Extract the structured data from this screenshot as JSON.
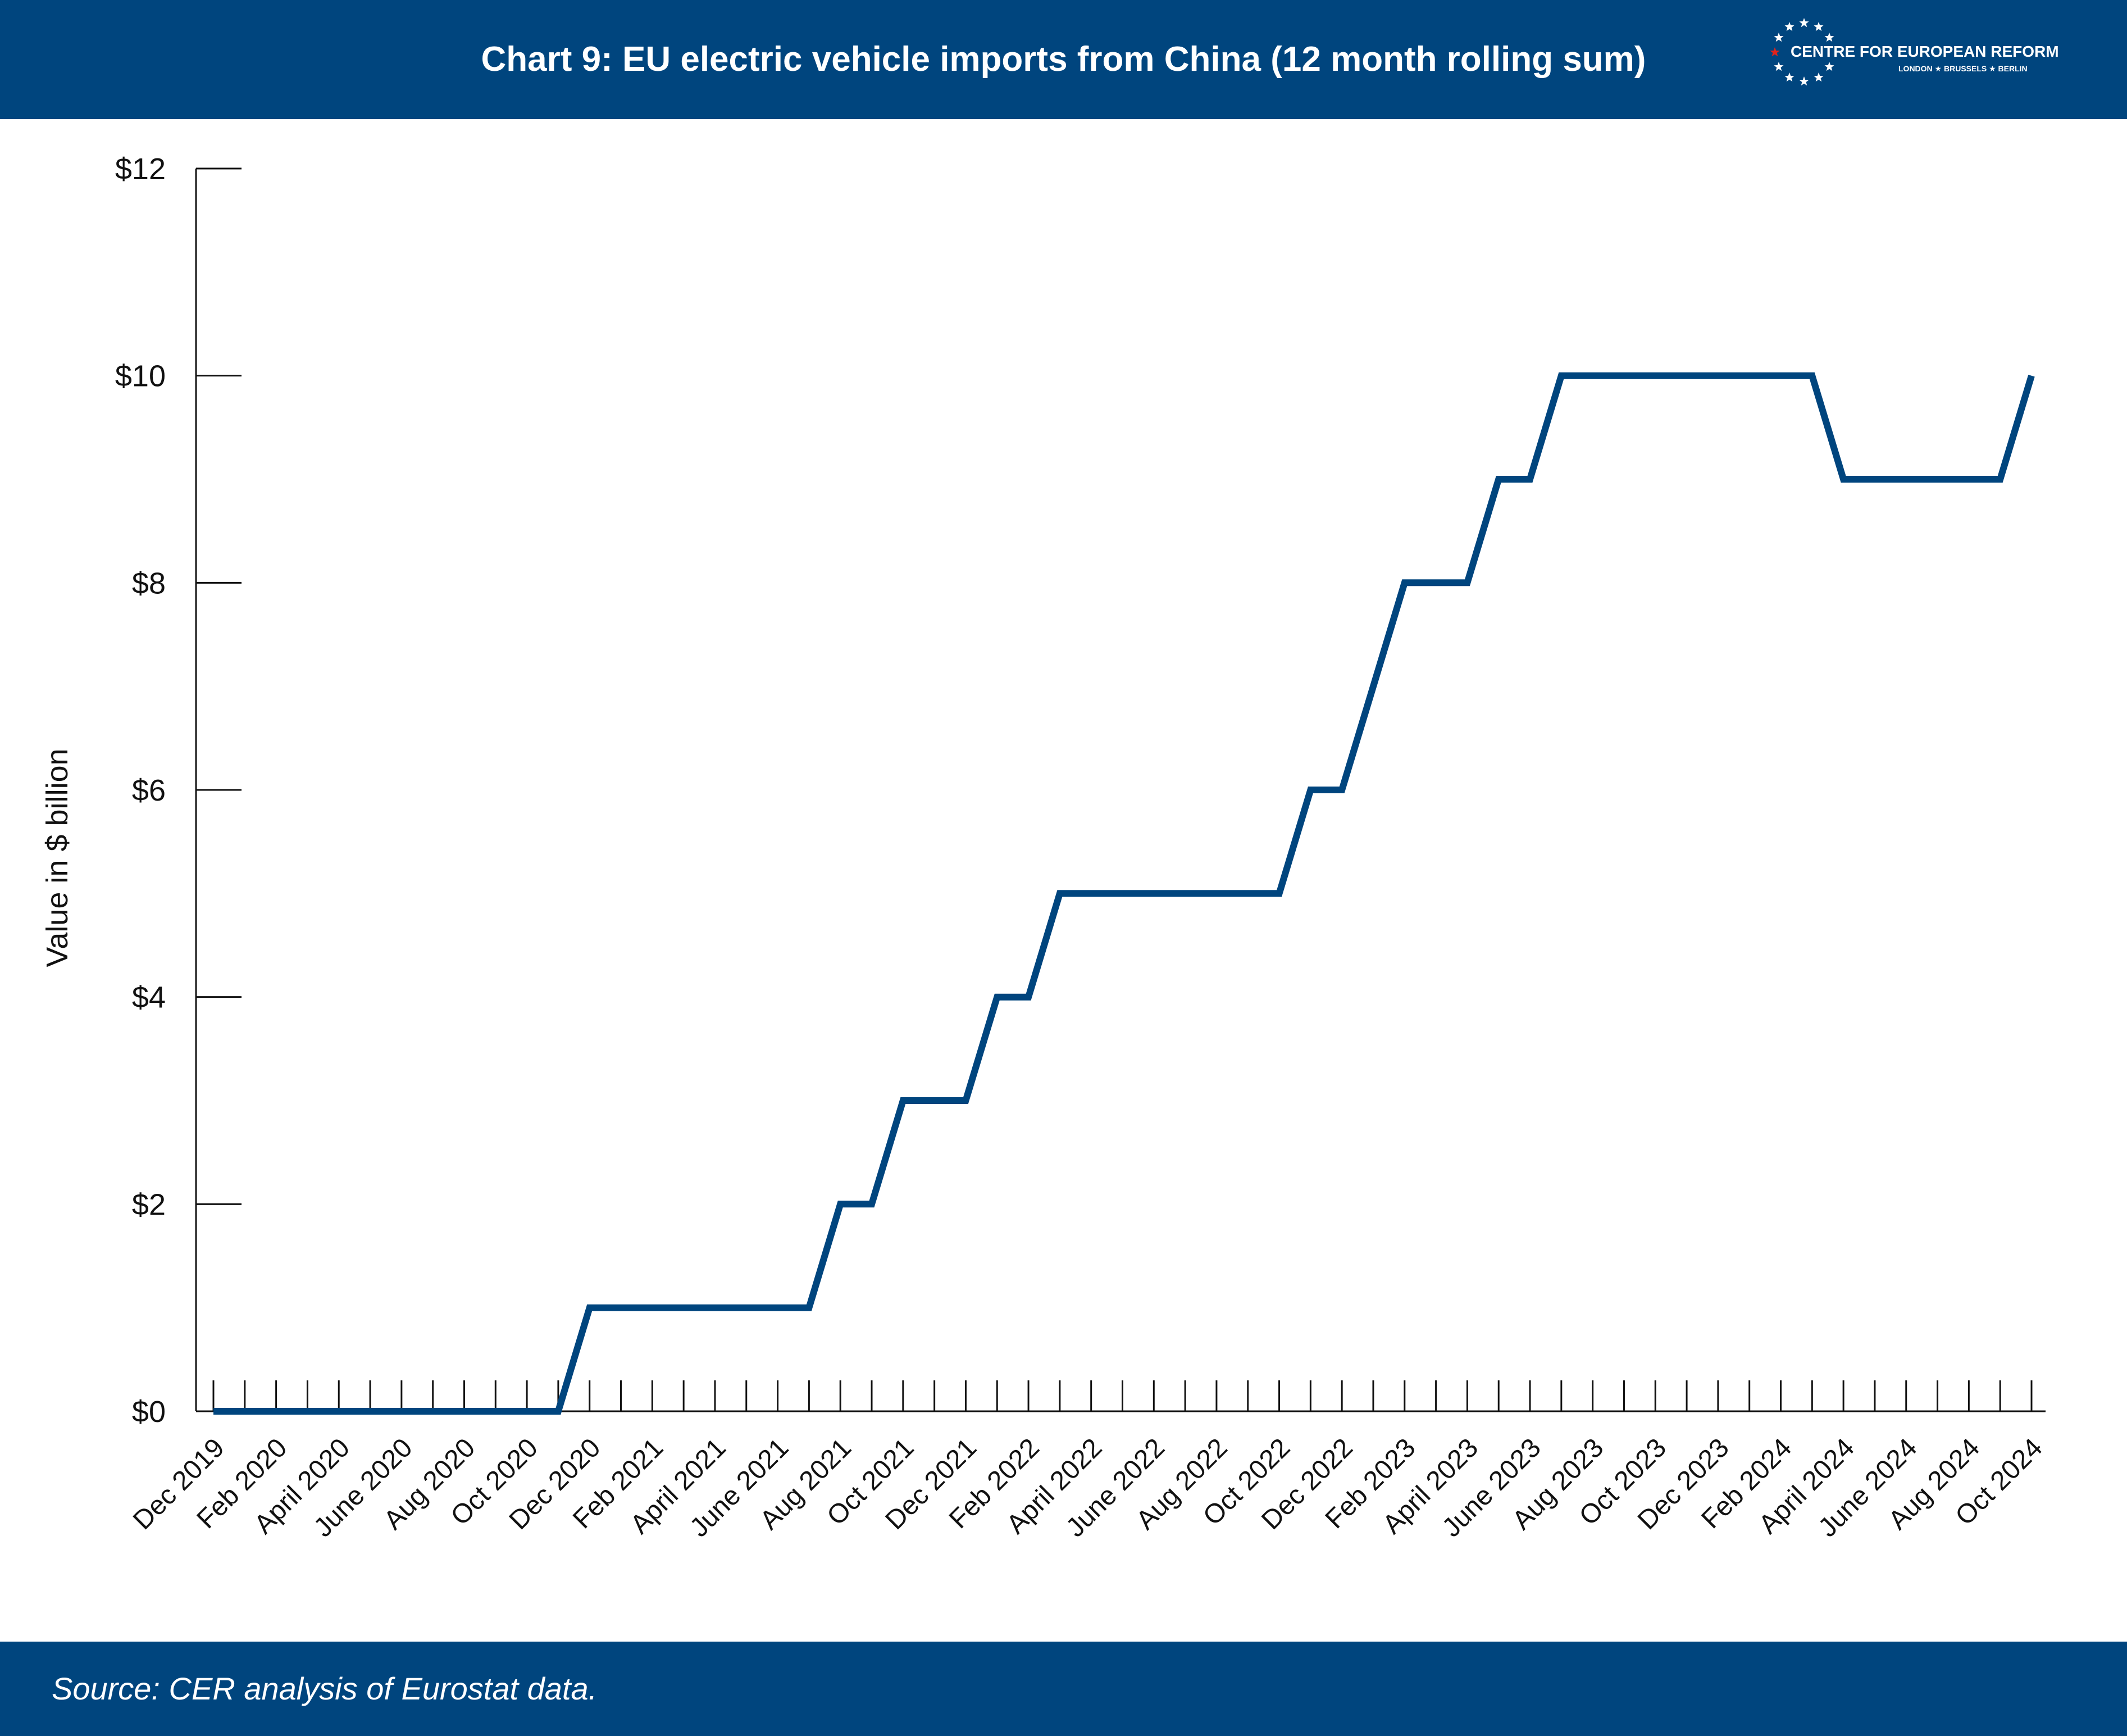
{
  "header": {
    "title": "Chart 9: EU electric vehicle imports from China (12 month rolling sum)"
  },
  "logo": {
    "name": "CENTRE FOR EUROPEAN REFORM",
    "subtitle": "LONDON ★ BRUSSELS ★ BERLIN",
    "icon": "eu-star-ring-icon"
  },
  "footer": {
    "source": "Source: CER analysis of Eurostat data."
  },
  "colors": {
    "brand": "#00457e",
    "series": "#00457e",
    "star_accent": "#e2231a"
  },
  "chart_data": {
    "type": "line",
    "ylabel": "Value in $ billion",
    "xlabel": "",
    "ylim": [
      0,
      12
    ],
    "yticks": [
      {
        "value": 0,
        "label": "$0"
      },
      {
        "value": 2,
        "label": "$2"
      },
      {
        "value": 4,
        "label": "$4"
      },
      {
        "value": 6,
        "label": "$6"
      },
      {
        "value": 8,
        "label": "$8"
      },
      {
        "value": 10,
        "label": "$10"
      },
      {
        "value": 12,
        "label": "$12"
      }
    ],
    "x": [
      "Dec 2019",
      "Jan 2020",
      "Feb 2020",
      "Mar 2020",
      "Apr 2020",
      "May 2020",
      "Jun 2020",
      "Jul 2020",
      "Aug 2020",
      "Sep 2020",
      "Oct 2020",
      "Nov 2020",
      "Dec 2020",
      "Jan 2021",
      "Feb 2021",
      "Mar 2021",
      "Apr 2021",
      "May 2021",
      "Jun 2021",
      "Jul 2021",
      "Aug 2021",
      "Sep 2021",
      "Oct 2021",
      "Nov 2021",
      "Dec 2021",
      "Jan 2022",
      "Feb 2022",
      "Mar 2022",
      "Apr 2022",
      "May 2022",
      "Jun 2022",
      "Jul 2022",
      "Aug 2022",
      "Sep 2022",
      "Oct 2022",
      "Nov 2022",
      "Dec 2022",
      "Jan 2023",
      "Feb 2023",
      "Mar 2023",
      "Apr 2023",
      "May 2023",
      "Jun 2023",
      "Jul 2023",
      "Aug 2023",
      "Sep 2023",
      "Oct 2023",
      "Nov 2023",
      "Dec 2023",
      "Jan 2024",
      "Feb 2024",
      "Mar 2024",
      "Apr 2024",
      "May 2024",
      "Jun 2024",
      "Jul 2024",
      "Aug 2024",
      "Sep 2024",
      "Oct 2024"
    ],
    "xtick_labels": [
      "Dec 2019",
      "Feb 2020",
      "April 2020",
      "June 2020",
      "Aug 2020",
      "Oct 2020",
      "Dec 2020",
      "Feb 2021",
      "April 2021",
      "June 2021",
      "Aug 2021",
      "Oct 2021",
      "Dec 2021",
      "Feb 2022",
      "April 2022",
      "June 2022",
      "Aug 2022",
      "Oct 2022",
      "Dec 2022",
      "Feb 2023",
      "April 2023",
      "June 2023",
      "Aug 2023",
      "Oct 2023",
      "Dec 2023",
      "Feb 2024",
      "April 2024",
      "June 2024",
      "Aug 2024",
      "Oct 2024"
    ],
    "series": [
      {
        "values": [
          0,
          0,
          0,
          0,
          0,
          0,
          0,
          0,
          0,
          0,
          0,
          0,
          1,
          1,
          1,
          1,
          1,
          1,
          1,
          1,
          2,
          2,
          3,
          3,
          3,
          4,
          4,
          5,
          5,
          5,
          5,
          5,
          5,
          5,
          5,
          6,
          6,
          7,
          8,
          8,
          8,
          9,
          9,
          10,
          10,
          10,
          10,
          10,
          10,
          10,
          10,
          10,
          9,
          9,
          9,
          9,
          9,
          9,
          10
        ]
      }
    ],
    "grid": false,
    "legend": "none"
  }
}
